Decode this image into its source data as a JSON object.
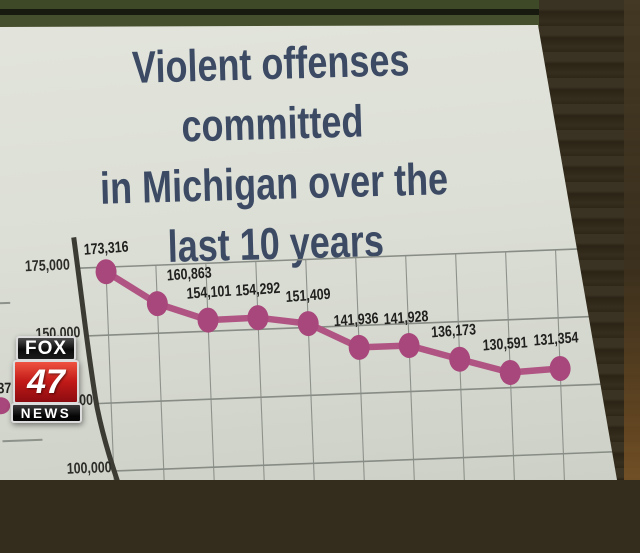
{
  "station_badge": {
    "network": "FOX",
    "number": "47",
    "label": "NEWS"
  },
  "slide": {
    "title_lines": [
      "Violent offenses committed",
      "in Michigan over the",
      "last 10 years"
    ]
  },
  "adjacent_chart_fragment": {
    "partial_label": "37"
  },
  "chart_data": {
    "type": "line",
    "title": "Violent offenses committed in Michigan over the last 10 years",
    "values": [
      173316,
      160863,
      154101,
      154292,
      151409,
      141936,
      141928,
      136173,
      130591,
      131354
    ],
    "point_labels": [
      "173,316",
      "160,863",
      "154,101",
      "154,292",
      "151,409",
      "141,936",
      "141,928",
      "136,173",
      "130,591",
      "131,354"
    ],
    "y_ticks": [
      {
        "value": 175000,
        "label": "175,000"
      },
      {
        "value": 150000,
        "label": "150,000"
      },
      {
        "value": 125000,
        "label": "125,000"
      },
      {
        "value": 100000,
        "label": "100,000"
      }
    ],
    "ylim_visible": [
      100000,
      175000
    ],
    "grid": true,
    "x_tick_labels_visible": false,
    "legend": "none",
    "series_color": "#a8477b",
    "line_color": "#b05583",
    "label_color": "#20201e"
  }
}
